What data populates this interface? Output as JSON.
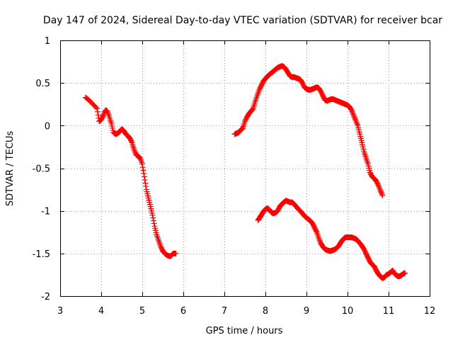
{
  "chart_data": {
    "type": "scatter",
    "title": "Day 147 of 2024, Sidereal Day-to-day VTEC variation (SDTVAR) for receiver bcar",
    "xlabel": "GPS time / hours",
    "ylabel": "SDTVAR / TECUs",
    "xlim": [
      3,
      12
    ],
    "ylim": [
      -2,
      1
    ],
    "xticks": [
      "3",
      "4",
      "5",
      "6",
      "7",
      "8",
      "9",
      "10",
      "11",
      "12"
    ],
    "yticks": [
      "-2",
      "-1.5",
      "-1",
      "-0.5",
      "0",
      "0.5",
      "1"
    ],
    "grid": true,
    "marker": "+",
    "color": "#ff0000",
    "series": [
      {
        "name": "segment-1",
        "points": [
          [
            3.62,
            0.33
          ],
          [
            3.7,
            0.3
          ],
          [
            3.8,
            0.25
          ],
          [
            3.9,
            0.2
          ],
          [
            3.95,
            0.05
          ],
          [
            4.0,
            0.07
          ],
          [
            4.05,
            0.12
          ],
          [
            4.1,
            0.18
          ],
          [
            4.15,
            0.17
          ],
          [
            4.2,
            0.1
          ],
          [
            4.25,
            0.02
          ],
          [
            4.3,
            -0.08
          ],
          [
            4.35,
            -0.1
          ],
          [
            4.4,
            -0.09
          ],
          [
            4.45,
            -0.07
          ],
          [
            4.5,
            -0.04
          ],
          [
            4.55,
            -0.06
          ],
          [
            4.6,
            -0.1
          ],
          [
            4.65,
            -0.12
          ],
          [
            4.7,
            -0.15
          ],
          [
            4.75,
            -0.2
          ],
          [
            4.8,
            -0.28
          ],
          [
            4.85,
            -0.34
          ],
          [
            4.9,
            -0.36
          ],
          [
            4.95,
            -0.38
          ],
          [
            5.0,
            -0.45
          ],
          [
            5.05,
            -0.6
          ],
          [
            5.1,
            -0.75
          ],
          [
            5.15,
            -0.85
          ],
          [
            5.2,
            -0.95
          ],
          [
            5.25,
            -1.05
          ],
          [
            5.3,
            -1.18
          ],
          [
            5.35,
            -1.28
          ],
          [
            5.4,
            -1.35
          ],
          [
            5.45,
            -1.42
          ],
          [
            5.5,
            -1.47
          ],
          [
            5.55,
            -1.5
          ],
          [
            5.6,
            -1.52
          ],
          [
            5.65,
            -1.53
          ],
          [
            5.7,
            -1.53
          ],
          [
            5.75,
            -1.5
          ],
          [
            5.82,
            -1.5
          ]
        ]
      },
      {
        "name": "segment-2",
        "points": [
          [
            7.25,
            -0.1
          ],
          [
            7.3,
            -0.09
          ],
          [
            7.35,
            -0.08
          ],
          [
            7.4,
            -0.05
          ],
          [
            7.45,
            -0.03
          ],
          [
            7.5,
            0.05
          ],
          [
            7.55,
            0.1
          ],
          [
            7.6,
            0.14
          ],
          [
            7.65,
            0.17
          ],
          [
            7.7,
            0.2
          ],
          [
            7.75,
            0.28
          ],
          [
            7.8,
            0.35
          ],
          [
            7.85,
            0.42
          ],
          [
            7.9,
            0.47
          ],
          [
            7.95,
            0.52
          ],
          [
            8.0,
            0.55
          ],
          [
            8.05,
            0.58
          ],
          [
            8.1,
            0.6
          ],
          [
            8.15,
            0.62
          ],
          [
            8.2,
            0.64
          ],
          [
            8.25,
            0.66
          ],
          [
            8.3,
            0.68
          ],
          [
            8.35,
            0.69
          ],
          [
            8.4,
            0.7
          ],
          [
            8.45,
            0.69
          ],
          [
            8.5,
            0.66
          ],
          [
            8.55,
            0.62
          ],
          [
            8.6,
            0.58
          ],
          [
            8.65,
            0.57
          ],
          [
            8.7,
            0.57
          ],
          [
            8.75,
            0.56
          ],
          [
            8.8,
            0.55
          ],
          [
            8.85,
            0.54
          ],
          [
            8.9,
            0.5
          ],
          [
            8.95,
            0.45
          ],
          [
            9.0,
            0.43
          ],
          [
            9.05,
            0.42
          ],
          [
            9.1,
            0.42
          ],
          [
            9.15,
            0.43
          ],
          [
            9.2,
            0.44
          ],
          [
            9.25,
            0.45
          ],
          [
            9.3,
            0.44
          ],
          [
            9.35,
            0.4
          ],
          [
            9.4,
            0.35
          ],
          [
            9.45,
            0.3
          ],
          [
            9.5,
            0.29
          ],
          [
            9.55,
            0.3
          ],
          [
            9.6,
            0.31
          ],
          [
            9.65,
            0.31
          ],
          [
            9.7,
            0.3
          ],
          [
            9.75,
            0.29
          ],
          [
            9.8,
            0.28
          ],
          [
            9.85,
            0.27
          ],
          [
            9.9,
            0.26
          ],
          [
            9.95,
            0.25
          ],
          [
            10.0,
            0.24
          ],
          [
            10.05,
            0.22
          ],
          [
            10.1,
            0.18
          ],
          [
            10.15,
            0.12
          ],
          [
            10.2,
            0.06
          ],
          [
            10.25,
            0.0
          ],
          [
            10.3,
            -0.1
          ],
          [
            10.35,
            -0.2
          ],
          [
            10.4,
            -0.3
          ],
          [
            10.45,
            -0.38
          ],
          [
            10.5,
            -0.45
          ],
          [
            10.55,
            -0.55
          ],
          [
            10.6,
            -0.6
          ],
          [
            10.65,
            -0.62
          ],
          [
            10.7,
            -0.65
          ],
          [
            10.75,
            -0.7
          ],
          [
            10.8,
            -0.76
          ],
          [
            10.85,
            -0.82
          ]
        ]
      },
      {
        "name": "segment-3",
        "points": [
          [
            7.82,
            -1.11
          ],
          [
            7.86,
            -1.08
          ],
          [
            7.9,
            -1.05
          ],
          [
            7.95,
            -1.01
          ],
          [
            8.0,
            -0.98
          ],
          [
            8.05,
            -0.97
          ],
          [
            8.1,
            -0.99
          ],
          [
            8.15,
            -1.02
          ],
          [
            8.2,
            -1.03
          ],
          [
            8.25,
            -1.02
          ],
          [
            8.3,
            -1.0
          ],
          [
            8.35,
            -0.95
          ],
          [
            8.4,
            -0.92
          ],
          [
            8.45,
            -0.9
          ],
          [
            8.5,
            -0.88
          ],
          [
            8.55,
            -0.89
          ],
          [
            8.6,
            -0.9
          ],
          [
            8.65,
            -0.9
          ],
          [
            8.7,
            -0.92
          ],
          [
            8.75,
            -0.95
          ],
          [
            8.8,
            -0.98
          ],
          [
            8.85,
            -1.0
          ],
          [
            8.9,
            -1.03
          ],
          [
            8.95,
            -1.06
          ],
          [
            9.0,
            -1.08
          ],
          [
            9.05,
            -1.1
          ],
          [
            9.1,
            -1.12
          ],
          [
            9.15,
            -1.15
          ],
          [
            9.2,
            -1.2
          ],
          [
            9.25,
            -1.25
          ],
          [
            9.3,
            -1.32
          ],
          [
            9.35,
            -1.38
          ],
          [
            9.4,
            -1.42
          ],
          [
            9.45,
            -1.45
          ],
          [
            9.5,
            -1.46
          ],
          [
            9.55,
            -1.47
          ],
          [
            9.6,
            -1.47
          ],
          [
            9.65,
            -1.46
          ],
          [
            9.7,
            -1.45
          ],
          [
            9.75,
            -1.43
          ],
          [
            9.8,
            -1.4
          ],
          [
            9.85,
            -1.36
          ],
          [
            9.9,
            -1.33
          ],
          [
            9.95,
            -1.31
          ],
          [
            10.0,
            -1.31
          ],
          [
            10.05,
            -1.31
          ],
          [
            10.1,
            -1.31
          ],
          [
            10.15,
            -1.32
          ],
          [
            10.2,
            -1.33
          ],
          [
            10.25,
            -1.35
          ],
          [
            10.3,
            -1.38
          ],
          [
            10.35,
            -1.41
          ],
          [
            10.4,
            -1.45
          ],
          [
            10.45,
            -1.5
          ],
          [
            10.5,
            -1.55
          ],
          [
            10.55,
            -1.6
          ],
          [
            10.6,
            -1.63
          ],
          [
            10.65,
            -1.65
          ],
          [
            10.7,
            -1.7
          ],
          [
            10.75,
            -1.74
          ],
          [
            10.8,
            -1.77
          ],
          [
            10.85,
            -1.79
          ],
          [
            10.9,
            -1.78
          ],
          [
            10.95,
            -1.75
          ],
          [
            11.0,
            -1.74
          ],
          [
            11.05,
            -1.72
          ],
          [
            11.1,
            -1.7
          ],
          [
            11.15,
            -1.74
          ],
          [
            11.2,
            -1.76
          ],
          [
            11.25,
            -1.77
          ],
          [
            11.3,
            -1.76
          ],
          [
            11.35,
            -1.74
          ],
          [
            11.4,
            -1.73
          ]
        ]
      }
    ]
  }
}
